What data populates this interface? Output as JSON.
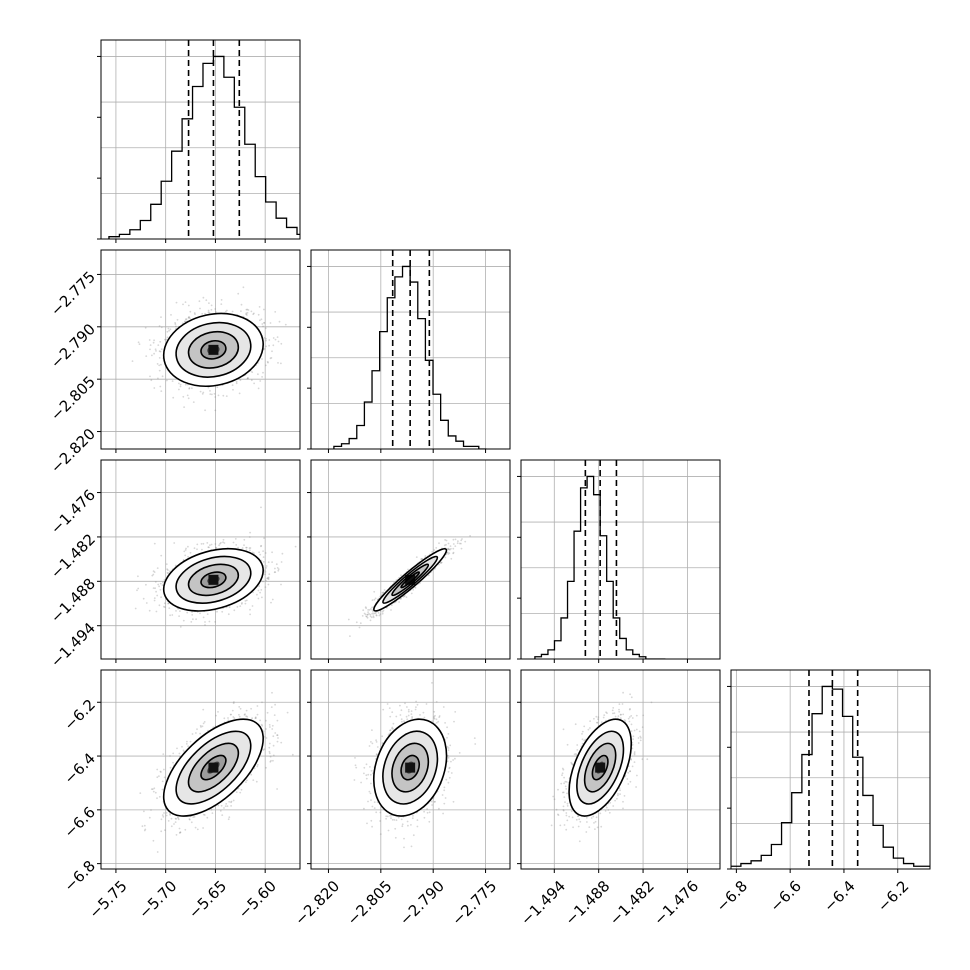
{
  "chart_data": {
    "type": "corner",
    "parameters": [
      {
        "id": "p1",
        "range": [
          -5.765,
          -5.565
        ],
        "ticks": [
          -5.75,
          -5.7,
          -5.65,
          -5.6
        ],
        "tick_labels": [
          "−5.75",
          "−5.70",
          "−5.65",
          "−5.60"
        ],
        "quantiles": [
          -5.677,
          -5.652,
          -5.626
        ],
        "median": -5.652,
        "sigma": 0.025,
        "hist_counts": [
          1,
          2,
          4,
          8,
          15,
          25,
          38,
          52,
          66,
          76,
          79,
          70,
          57,
          41,
          27,
          16,
          9,
          5,
          2,
          1
        ]
      },
      {
        "id": "p2",
        "range": [
          -2.825,
          -2.768
        ],
        "ticks": [
          -2.82,
          -2.805,
          -2.79,
          -2.775
        ],
        "tick_labels": [
          "−2.820",
          "−2.805",
          "−2.790",
          "−2.775"
        ],
        "quantiles": [
          -2.8016,
          -2.7966,
          -2.7911
        ],
        "median": -2.7966,
        "sigma": 0.0052,
        "hist_counts": [
          1,
          2,
          4,
          9,
          18,
          30,
          45,
          58,
          66,
          70,
          64,
          50,
          34,
          21,
          11,
          5,
          3,
          1,
          1,
          0
        ]
      },
      {
        "id": "p3",
        "range": [
          -1.4985,
          -1.4716
        ],
        "ticks": [
          -1.494,
          -1.488,
          -1.482,
          -1.476
        ],
        "tick_labels": [
          "−1.494",
          "−1.488",
          "−1.482",
          "−1.476"
        ],
        "quantiles": [
          -1.4898,
          -1.4878,
          -1.4856
        ],
        "median": -1.4878,
        "sigma": 0.0021,
        "hist_counts": [
          1,
          2,
          4,
          8,
          18,
          34,
          56,
          75,
          80,
          72,
          54,
          34,
          18,
          9,
          4,
          2,
          1,
          0,
          0,
          0
        ]
      },
      {
        "id": "p4",
        "range": [
          -6.82,
          -6.08
        ],
        "ticks": [
          -6.8,
          -6.6,
          -6.4,
          -6.2
        ],
        "tick_labels": [
          "−6.8",
          "−6.6",
          "−6.4",
          "−6.2"
        ],
        "quantiles": [
          -6.53,
          -6.443,
          -6.349
        ],
        "median": -6.443,
        "sigma": 0.09,
        "hist_counts": [
          1,
          2,
          3,
          5,
          9,
          17,
          28,
          42,
          57,
          67,
          66,
          56,
          41,
          27,
          16,
          8,
          4,
          2,
          1,
          1
        ]
      }
    ],
    "correlations": [
      {
        "row": 1,
        "col": 0,
        "rho": 0.15
      },
      {
        "row": 2,
        "col": 0,
        "rho": 0.3
      },
      {
        "row": 2,
        "col": 1,
        "rho": 0.95
      },
      {
        "row": 3,
        "col": 0,
        "rho": 0.6
      },
      {
        "row": 3,
        "col": 1,
        "rho": 0.25
      },
      {
        "row": 3,
        "col": 2,
        "rho": 0.5
      }
    ],
    "contour_sigma_levels": [
      0.5,
      1.0,
      1.5,
      2.0
    ],
    "grid": true,
    "title": "",
    "legend": ""
  }
}
